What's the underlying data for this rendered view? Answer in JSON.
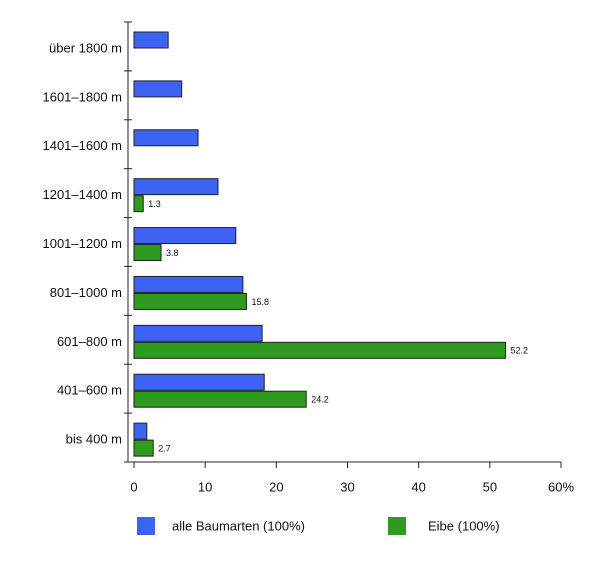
{
  "chart_data": {
    "type": "bar",
    "orientation": "horizontal",
    "categories": [
      "über 1800 m",
      "1601–1800 m",
      "1401–1600 m",
      "1201–1400 m",
      "1001–1200 m",
      "801–1000 m",
      "601–800 m",
      "401–600 m",
      "bis 400 m"
    ],
    "series": [
      {
        "name": "alle Baumarten (100%)",
        "color": "#3d63f5",
        "values": [
          4.8,
          6.7,
          9.0,
          11.8,
          14.3,
          15.3,
          18.0,
          18.3,
          1.8
        ]
      },
      {
        "name": "Eibe (100%)",
        "color": "#2e9a1e",
        "values": [
          null,
          null,
          null,
          1.3,
          3.8,
          15.8,
          52.2,
          24.2,
          2.7
        ]
      }
    ],
    "xlim": [
      0,
      60
    ],
    "xticks": [
      0,
      10,
      20,
      30,
      40,
      50,
      {
        "value": 60,
        "label": "60%"
      }
    ],
    "data_labels_series": 1
  }
}
